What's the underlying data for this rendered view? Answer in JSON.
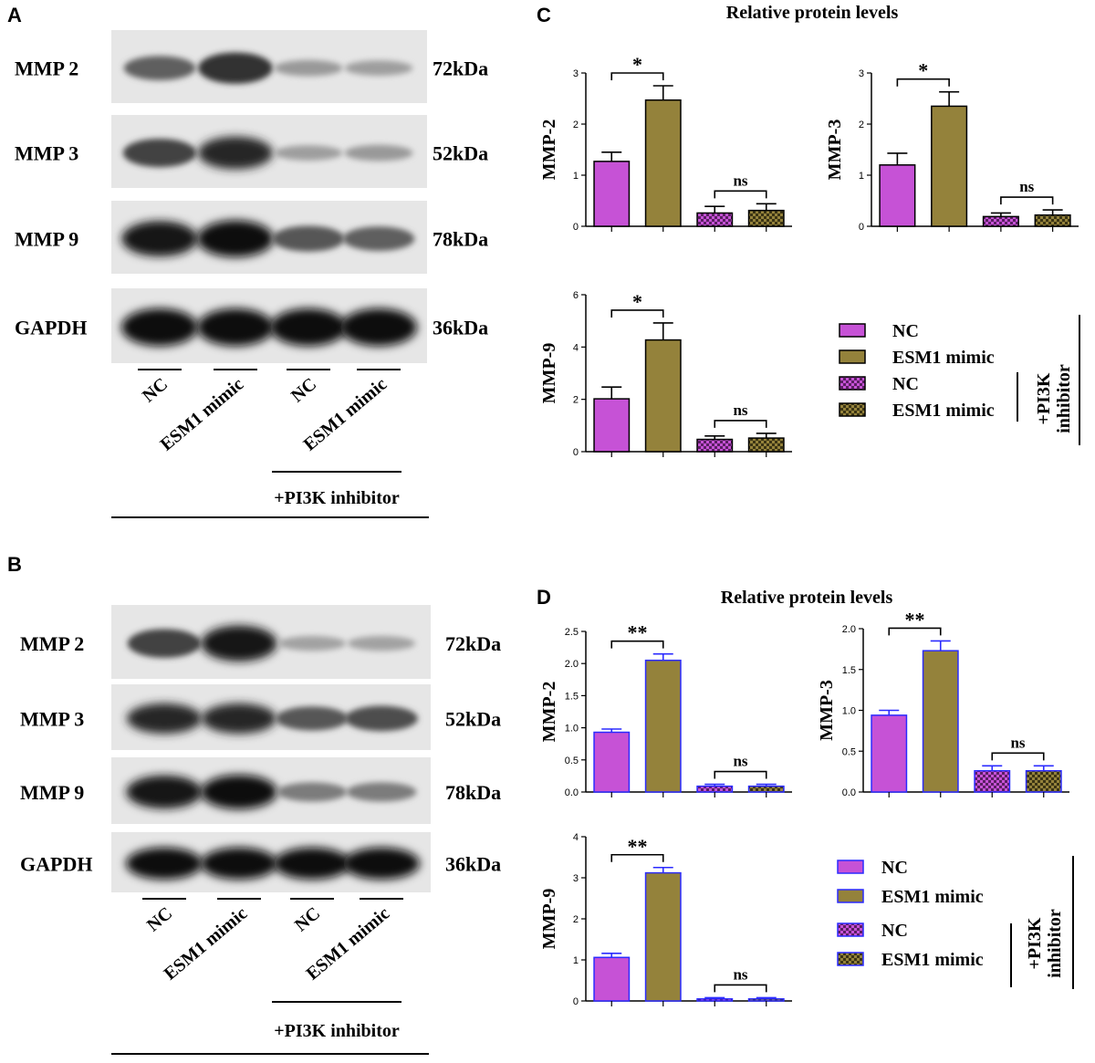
{
  "figure": {
    "panel_labels": [
      "A",
      "B",
      "C",
      "D"
    ],
    "blots": [
      {
        "id": "A",
        "rows": [
          {
            "protein": "MMP 2",
            "size": "72kDa",
            "intensity": [
              0.55,
              0.8,
              0.25,
              0.22
            ]
          },
          {
            "protein": "MMP 3",
            "size": "52kDa",
            "intensity": [
              0.7,
              0.85,
              0.22,
              0.25
            ]
          },
          {
            "protein": "MMP 9",
            "size": "78kDa",
            "intensity": [
              0.95,
              1.0,
              0.6,
              0.55
            ]
          },
          {
            "protein": "GAPDH",
            "size": "36kDa",
            "intensity": [
              1.0,
              1.0,
              1.0,
              1.0
            ]
          }
        ],
        "lanes": [
          "NC",
          "ESM1 mimic",
          "NC",
          "ESM1 mimic"
        ],
        "treatment": "+PI3K inhibitor"
      },
      {
        "id": "B",
        "rows": [
          {
            "protein": "MMP 2",
            "size": "72kDa",
            "intensity": [
              0.7,
              0.95,
              0.2,
              0.2
            ]
          },
          {
            "protein": "MMP 3",
            "size": "52kDa",
            "intensity": [
              0.85,
              0.85,
              0.6,
              0.65
            ]
          },
          {
            "protein": "MMP 9",
            "size": "78kDa",
            "intensity": [
              0.95,
              1.0,
              0.4,
              0.4
            ]
          },
          {
            "protein": "GAPDH",
            "size": "36kDa",
            "intensity": [
              1.0,
              1.0,
              1.0,
              1.0
            ]
          }
        ],
        "lanes": [
          "NC",
          "ESM1 mimic",
          "NC",
          "ESM1 mimic"
        ],
        "treatment": "+PI3K inhibitor"
      }
    ],
    "chart_panels": [
      {
        "id": "C",
        "title": "Relative protein levels",
        "legend": {
          "items": [
            "NC",
            "ESM1 mimic",
            "NC",
            "ESM1 mimic"
          ],
          "bracket_label": "+PI3K inhibitor"
        }
      },
      {
        "id": "D",
        "title": "Relative protein levels",
        "legend": {
          "items": [
            "NC",
            "ESM1 mimic",
            "NC",
            "ESM1 mimic"
          ],
          "bracket_label": "+PI3K inhibitor"
        }
      }
    ],
    "colors": {
      "nc": "#c652d6",
      "esm1": "#94823b",
      "edge_c": "#000000",
      "edge_d": "#2b2bff"
    }
  },
  "chart_data": [
    {
      "type": "bar",
      "panel": "C",
      "ylabel": "MMP-2",
      "categories": [
        "NC",
        "ESM1 mimic",
        "NC",
        "ESM1 mimic"
      ],
      "values": [
        1.27,
        2.47,
        0.26,
        0.31
      ],
      "errors": [
        0.18,
        0.28,
        0.13,
        0.13
      ],
      "ylim": [
        0,
        3
      ],
      "yticks": [
        "0",
        "1",
        "2",
        "3"
      ],
      "significance": [
        {
          "between": [
            0,
            1
          ],
          "label": "*"
        },
        {
          "between": [
            2,
            3
          ],
          "label": "ns"
        }
      ]
    },
    {
      "type": "bar",
      "panel": "C",
      "ylabel": "MMP-3",
      "categories": [
        "NC",
        "ESM1 mimic",
        "NC",
        "ESM1 mimic"
      ],
      "values": [
        1.2,
        2.35,
        0.19,
        0.22
      ],
      "errors": [
        0.23,
        0.28,
        0.07,
        0.1
      ],
      "ylim": [
        0,
        3
      ],
      "yticks": [
        "0",
        "1",
        "2",
        "3"
      ],
      "significance": [
        {
          "between": [
            0,
            1
          ],
          "label": "*"
        },
        {
          "between": [
            2,
            3
          ],
          "label": "ns"
        }
      ]
    },
    {
      "type": "bar",
      "panel": "C",
      "ylabel": "MMP-9",
      "categories": [
        "NC",
        "ESM1 mimic",
        "NC",
        "ESM1 mimic"
      ],
      "values": [
        2.02,
        4.27,
        0.47,
        0.52
      ],
      "errors": [
        0.45,
        0.65,
        0.13,
        0.18
      ],
      "ylim": [
        0,
        6
      ],
      "yticks": [
        "0",
        "2",
        "4",
        "6"
      ],
      "significance": [
        {
          "between": [
            0,
            1
          ],
          "label": "*"
        },
        {
          "between": [
            2,
            3
          ],
          "label": "ns"
        }
      ]
    },
    {
      "type": "bar",
      "panel": "D",
      "ylabel": "MMP-2",
      "categories": [
        "NC",
        "ESM1 mimic",
        "NC",
        "ESM1 mimic"
      ],
      "values": [
        0.93,
        2.05,
        0.09,
        0.09
      ],
      "errors": [
        0.05,
        0.1,
        0.03,
        0.03
      ],
      "ylim": [
        0,
        2.5
      ],
      "yticks": [
        "0.0",
        "0.5",
        "1.0",
        "1.5",
        "2.0",
        "2.5"
      ],
      "significance": [
        {
          "between": [
            0,
            1
          ],
          "label": "**"
        },
        {
          "between": [
            2,
            3
          ],
          "label": "ns"
        }
      ]
    },
    {
      "type": "bar",
      "panel": "D",
      "ylabel": "MMP-3",
      "categories": [
        "NC",
        "ESM1 mimic",
        "NC",
        "ESM1 mimic"
      ],
      "values": [
        0.94,
        1.73,
        0.26,
        0.26
      ],
      "errors": [
        0.06,
        0.12,
        0.06,
        0.06
      ],
      "ylim": [
        0,
        2.0
      ],
      "yticks": [
        "0.0",
        "0.5",
        "1.0",
        "1.5",
        "2.0"
      ],
      "significance": [
        {
          "between": [
            0,
            1
          ],
          "label": "**"
        },
        {
          "between": [
            2,
            3
          ],
          "label": "ns"
        }
      ]
    },
    {
      "type": "bar",
      "panel": "D",
      "ylabel": "MMP-9",
      "categories": [
        "NC",
        "ESM1 mimic",
        "NC",
        "ESM1 mimic"
      ],
      "values": [
        1.06,
        3.12,
        0.05,
        0.05
      ],
      "errors": [
        0.1,
        0.13,
        0.03,
        0.03
      ],
      "ylim": [
        0,
        4
      ],
      "yticks": [
        "0",
        "1",
        "2",
        "3",
        "4"
      ],
      "significance": [
        {
          "between": [
            0,
            1
          ],
          "label": "**"
        },
        {
          "between": [
            2,
            3
          ],
          "label": "ns"
        }
      ]
    }
  ]
}
